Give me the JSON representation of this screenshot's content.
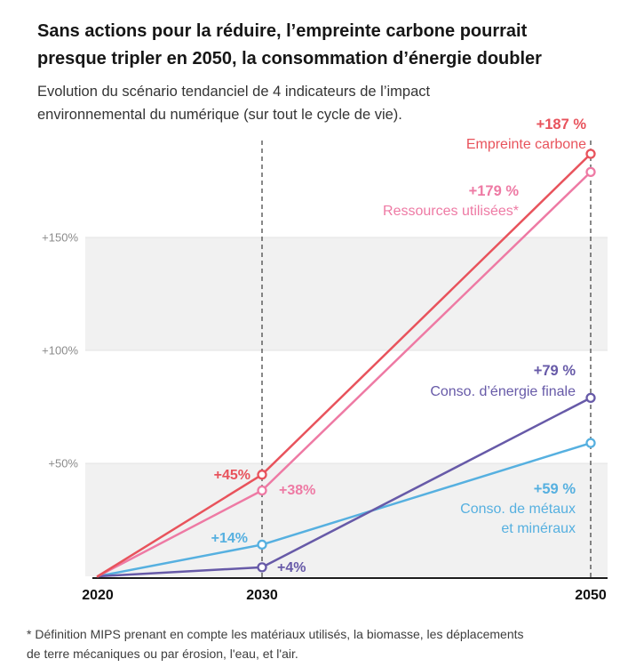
{
  "header": {
    "title": "Sans actions pour la réduire, l’empreinte carbone pourrait\npresque tripler en 2050, la consommation d’énergie doubler",
    "subtitle": "Evolution du scénario tendanciel de 4 indicateurs de l’impact\nenvironnemental du numérique (sur tout le cycle de vie)."
  },
  "footnote": "* Définition MIPS prenant en compte les matériaux utilisés, la biomasse, les déplacements\nde terre mécaniques ou par érosion, l'eau, et l'air.",
  "chart_data": {
    "type": "line",
    "x": [
      2020,
      2030,
      2050
    ],
    "x_tick_labels": [
      "2020",
      "2030",
      "2050"
    ],
    "ylim": [
      0,
      190
    ],
    "yticks": [
      50,
      100,
      150
    ],
    "ytick_labels": [
      "+50%",
      "+100%",
      "+150%"
    ],
    "unit": "percent increase vs 2020",
    "grid_on": false,
    "band_color": "#f1f1f1",
    "grid_bands": [
      [
        0,
        50
      ],
      [
        100,
        150
      ]
    ],
    "dashed_guides_at_x": [
      2030,
      2050
    ],
    "series": [
      {
        "name": "Empreinte carbone",
        "color": "#e8535c",
        "values": [
          0,
          45,
          187
        ],
        "label_2030": "+45%",
        "end_label_value": "+187 %",
        "end_label_name": "Empreinte carbone"
      },
      {
        "name": "Ressources utilisées*",
        "color": "#ee7aa4",
        "values": [
          0,
          38,
          179
        ],
        "label_2030": "+38%",
        "end_label_value": "+179 %",
        "end_label_name": "Ressources utilisées*"
      },
      {
        "name": "Conso. d'énergie finale",
        "color": "#675aa8",
        "values": [
          0,
          4,
          79
        ],
        "label_2030": "+4%",
        "end_label_value": "+79 %",
        "end_label_name": "Conso. d’énergie finale"
      },
      {
        "name": "Conso. de métaux et minéraux",
        "color": "#56b0e0",
        "values": [
          0,
          14,
          59
        ],
        "label_2030": "+14%",
        "end_label_value": "+59 %",
        "end_label_name": "Conso. de métaux\net minéraux"
      }
    ]
  }
}
